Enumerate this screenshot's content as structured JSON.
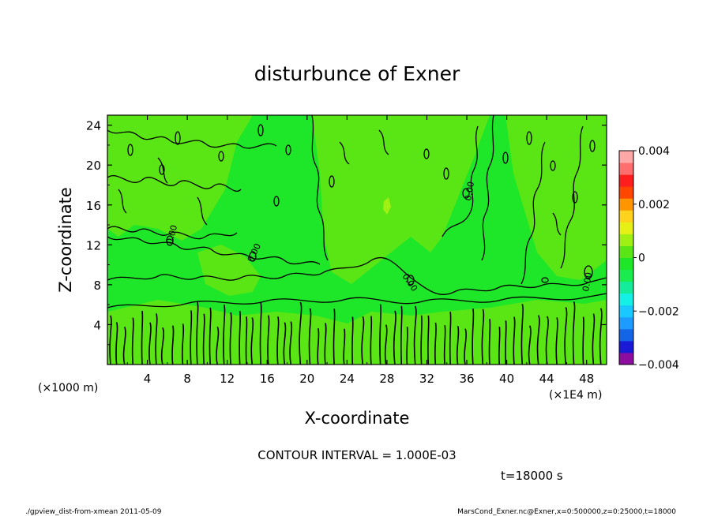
{
  "chart_data": {
    "type": "heatmap",
    "title": "disturbunce of Exner",
    "xlabel": "X-coordinate",
    "ylabel": "Z-coordinate",
    "x_unit": "(×1E4 m)",
    "y_unit": "(×1000 m)",
    "xlim": [
      0,
      50
    ],
    "ylim": [
      0,
      25
    ],
    "x_ticks": [
      "4",
      "8",
      "12",
      "16",
      "20",
      "24",
      "28",
      "32",
      "36",
      "40",
      "44",
      "48"
    ],
    "y_ticks": [
      "4",
      "8",
      "12",
      "16",
      "20",
      "24"
    ],
    "colorbar": {
      "min": -0.004,
      "max": 0.004,
      "tick_labels": [
        "0.004",
        "0.002",
        "0",
        "−0.002",
        "−0.004"
      ],
      "tick_values": [
        0.004,
        0.002,
        0,
        -0.002,
        -0.004
      ],
      "colors": [
        "#8d0d9e",
        "#1a1ad6",
        "#1464e6",
        "#1e9bff",
        "#18c8ff",
        "#14f0e6",
        "#14ec9c",
        "#1aec50",
        "#1ee628",
        "#5ae614",
        "#a0f014",
        "#e6f014",
        "#ffd21e",
        "#ff9600",
        "#ff4600",
        "#ff1e1e",
        "#ff6e6e",
        "#ffa8a8"
      ]
    },
    "contour_interval": "CONTOUR INTERVAL = 1.000E-03",
    "contour_labels": [
      "0.00",
      "0.00",
      "0.00",
      "0.00",
      "0.00"
    ],
    "field_summary": "Values are near 0 everywhere (green), slightly positive (light green) in upper-left, center-top and right domes, with dense small-scale contours below z≈5."
  },
  "annotations": {
    "time": "t=18000 s",
    "footer_left": "./gpview_dist-from-xmean  2011-05-09",
    "footer_right": "MarsCond_Exner.nc@Exner,x=0:500000,z=0:25000,t=18000"
  }
}
